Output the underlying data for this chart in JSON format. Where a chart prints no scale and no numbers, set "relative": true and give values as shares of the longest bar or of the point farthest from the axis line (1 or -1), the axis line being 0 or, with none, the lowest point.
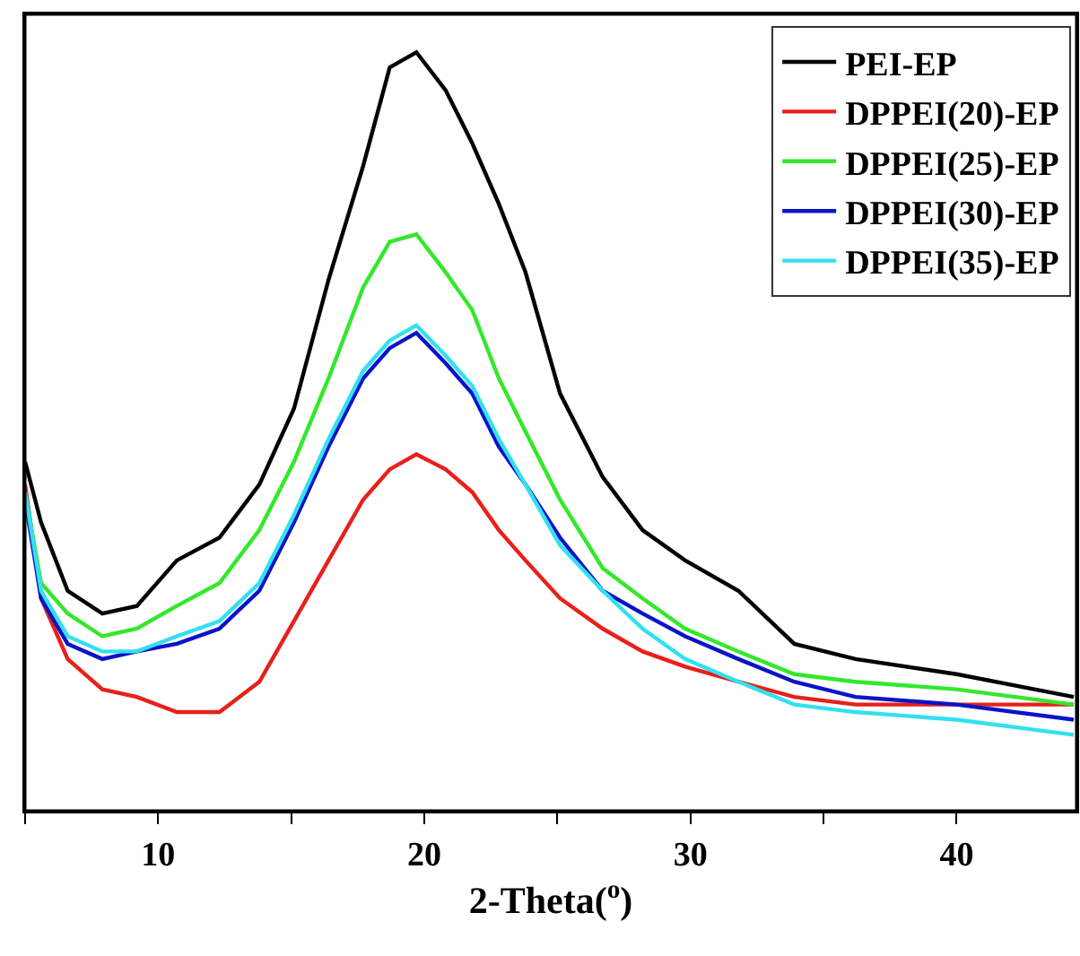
{
  "chart_data": {
    "type": "line",
    "relative": true,
    "xlabel": "2-Theta($^{o}$)",
    "xlim": [
      5,
      44.5
    ],
    "xticks": [
      {
        "value": 5,
        "label": null
      },
      10,
      {
        "value": 15,
        "label": null
      },
      20,
      {
        "value": 25,
        "label": null
      },
      30,
      {
        "value": 35,
        "label": null
      },
      40
    ],
    "tick_labels": "x",
    "legend": "top right",
    "grid": false,
    "x": [
      5.0,
      5.6,
      6.6,
      7.9,
      9.2,
      10.7,
      12.3,
      13.8,
      15.1,
      16.4,
      17.7,
      18.7,
      19.7,
      20.8,
      21.8,
      22.8,
      23.8,
      25.1,
      26.7,
      28.2,
      29.8,
      31.8,
      33.9,
      36.2,
      40.0,
      44.4
    ],
    "series": [
      {
        "name": "PEI-EP",
        "color": "#000000",
        "values": [
          0.46,
          0.38,
          0.29,
          0.26,
          0.27,
          0.33,
          0.36,
          0.43,
          0.53,
          0.7,
          0.85,
          0.98,
          1.0,
          0.95,
          0.88,
          0.8,
          0.71,
          0.55,
          0.44,
          0.37,
          0.33,
          0.29,
          0.22,
          0.2,
          0.18,
          0.15
        ]
      },
      {
        "name": "DPPEI(20)-EP",
        "color": "#e8201a",
        "values": [
          0.43,
          0.28,
          0.2,
          0.16,
          0.15,
          0.13,
          0.13,
          0.17,
          0.25,
          0.33,
          0.41,
          0.45,
          0.47,
          0.45,
          0.42,
          0.37,
          0.33,
          0.28,
          0.24,
          0.21,
          0.19,
          0.17,
          0.15,
          0.14,
          0.14,
          0.14
        ]
      },
      {
        "name": "DPPEI(25)-EP",
        "color": "#33e82b",
        "values": [
          0.42,
          0.3,
          0.26,
          0.23,
          0.24,
          0.27,
          0.3,
          0.37,
          0.46,
          0.57,
          0.69,
          0.75,
          0.76,
          0.71,
          0.66,
          0.57,
          0.5,
          0.41,
          0.32,
          0.28,
          0.24,
          0.21,
          0.18,
          0.17,
          0.16,
          0.14
        ]
      },
      {
        "name": "DPPEI(30)-EP",
        "color": "#0a14c8",
        "values": [
          0.41,
          0.28,
          0.22,
          0.2,
          0.21,
          0.22,
          0.24,
          0.29,
          0.38,
          0.48,
          0.57,
          0.61,
          0.63,
          0.59,
          0.55,
          0.48,
          0.43,
          0.36,
          0.29,
          0.26,
          0.23,
          0.2,
          0.17,
          0.15,
          0.14,
          0.12
        ]
      },
      {
        "name": "DPPEI(35)-EP",
        "color": "#33e0f0",
        "values": [
          0.42,
          0.29,
          0.23,
          0.21,
          0.21,
          0.23,
          0.25,
          0.3,
          0.39,
          0.49,
          0.58,
          0.62,
          0.64,
          0.6,
          0.56,
          0.49,
          0.43,
          0.35,
          0.29,
          0.24,
          0.2,
          0.17,
          0.14,
          0.13,
          0.12,
          0.1
        ]
      }
    ]
  }
}
